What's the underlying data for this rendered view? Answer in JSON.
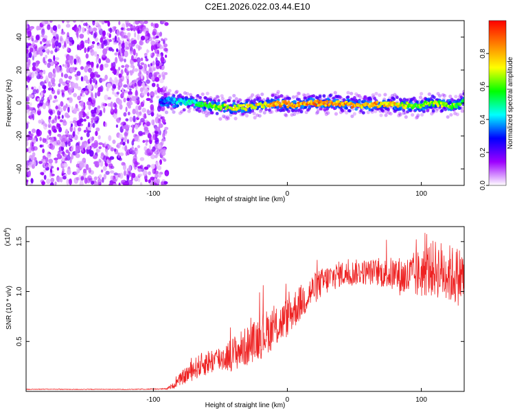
{
  "figure": {
    "title": "C2E1.2026.022.03.44.E10"
  },
  "chart_data": [
    {
      "type": "heatmap",
      "name": "spectrogram",
      "title": "C2E1.2026.022.03.44.E10",
      "xlabel": "Height of straight line (km)",
      "ylabel": "Frequency (Hz)",
      "xlim": [
        -195,
        132
      ],
      "ylim": [
        -50,
        50
      ],
      "x_ticks": [
        -100,
        0,
        100
      ],
      "x_tick_labels": [
        "-100",
        "0",
        "100"
      ],
      "y_ticks": [
        -40,
        -20,
        0,
        20,
        40
      ],
      "y_tick_labels": [
        "-40",
        "-20",
        "0",
        "20",
        "40"
      ],
      "noise_region_x": [
        -195,
        -90
      ],
      "signal_region_x": [
        -95,
        132
      ],
      "signal_center_frequency_hz": 0,
      "signal_trace": [
        {
          "x": -95,
          "y": 1,
          "amp": 0.3
        },
        {
          "x": -85,
          "y": 1,
          "amp": 0.45
        },
        {
          "x": -70,
          "y": 0,
          "amp": 0.55
        },
        {
          "x": -55,
          "y": -2,
          "amp": 0.7
        },
        {
          "x": -40,
          "y": -3,
          "amp": 0.8
        },
        {
          "x": -25,
          "y": -2,
          "amp": 0.85
        },
        {
          "x": -10,
          "y": 0,
          "amp": 0.9
        },
        {
          "x": 5,
          "y": -1,
          "amp": 0.9
        },
        {
          "x": 20,
          "y": 0,
          "amp": 0.95
        },
        {
          "x": 35,
          "y": 0,
          "amp": 0.95
        },
        {
          "x": 50,
          "y": -1,
          "amp": 0.9
        },
        {
          "x": 65,
          "y": -1,
          "amp": 0.9
        },
        {
          "x": 80,
          "y": -1,
          "amp": 0.85
        },
        {
          "x": 95,
          "y": -2,
          "amp": 0.7
        },
        {
          "x": 110,
          "y": 0,
          "amp": 0.75
        },
        {
          "x": 125,
          "y": -2,
          "amp": 0.7
        },
        {
          "x": 132,
          "y": 1,
          "amp": 0.6
        }
      ]
    },
    {
      "type": "colorbar",
      "name": "amplitude-colorbar",
      "label": "Normalized spectral amplitude",
      "range": [
        0,
        1
      ],
      "ticks": [
        0,
        0.2,
        0.4,
        0.6,
        0.8
      ],
      "tick_labels": [
        "0.0",
        "0.2",
        "0.4",
        "0.6",
        "0.8"
      ],
      "colormap": [
        "#ffffff",
        "#9d00ff",
        "#0000ff",
        "#00ffff",
        "#00ff00",
        "#ffff00",
        "#ff8000",
        "#ff0000"
      ]
    },
    {
      "type": "line",
      "name": "snr",
      "xlabel": "Height of straight line (km)",
      "ylabel": "SNR (10 * v/v)",
      "y_exponent_label": "(x10",
      "y_exponent_power": "4",
      "y_exponent_close": ")",
      "xlim": [
        -195,
        132
      ],
      "ylim": [
        0,
        16500
      ],
      "x_ticks": [
        -100,
        0,
        100
      ],
      "x_tick_labels": [
        "-100",
        "0",
        "100"
      ],
      "y_ticks": [
        5000,
        10000,
        15000
      ],
      "y_tick_labels": [
        "0.5",
        "1.0",
        "1.5"
      ],
      "color": "#ee2222",
      "series": [
        {
          "name": "SNR",
          "x": [
            -195,
            -180,
            -160,
            -140,
            -120,
            -100,
            -90,
            -85,
            -80,
            -75,
            -70,
            -65,
            -60,
            -55,
            -50,
            -45,
            -40,
            -35,
            -30,
            -25,
            -20,
            -15,
            -10,
            -5,
            0,
            5,
            10,
            15,
            20,
            25,
            30,
            35,
            40,
            45,
            50,
            55,
            60,
            65,
            70,
            75,
            80,
            85,
            90,
            95,
            100,
            105,
            110,
            115,
            120,
            125,
            132
          ],
          "y": [
            200,
            220,
            200,
            210,
            200,
            230,
            250,
            600,
            1200,
            1700,
            2200,
            2600,
            2900,
            3100,
            3300,
            3500,
            3800,
            4200,
            4500,
            5000,
            5600,
            6000,
            6200,
            6800,
            7400,
            8200,
            8900,
            9600,
            10300,
            10800,
            11200,
            11500,
            11800,
            11700,
            11900,
            12000,
            11900,
            12000,
            11800,
            11800,
            11700,
            11500,
            11400,
            11600,
            11800,
            12200,
            12300,
            12100,
            11800,
            11600,
            11500
          ],
          "noise_amplitude": [
            30,
            30,
            30,
            30,
            30,
            40,
            60,
            300,
            600,
            900,
            1100,
            1200,
            1300,
            1300,
            1400,
            1500,
            1800,
            1900,
            2000,
            2000,
            2400,
            2200,
            2000,
            2000,
            2000,
            2000,
            1800,
            1800,
            1600,
            1500,
            1500,
            1400,
            1300,
            1300,
            1300,
            1300,
            1300,
            1300,
            1400,
            1600,
            1800,
            2000,
            2200,
            2400,
            2500,
            2700,
            2900,
            3000,
            3000,
            3000,
            3000
          ]
        }
      ]
    }
  ]
}
